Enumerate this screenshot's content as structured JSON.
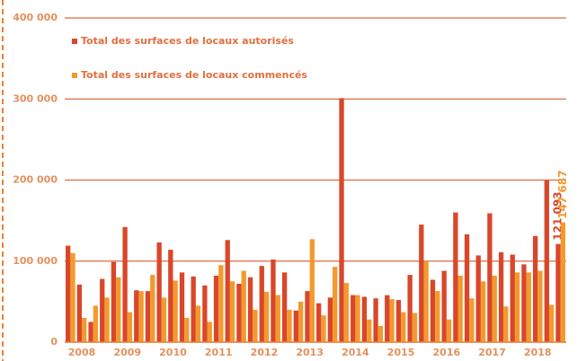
{
  "chart_data": {
    "type": "bar",
    "categories": [
      null,
      "2008",
      null,
      null,
      null,
      "2009",
      null,
      null,
      null,
      "2010",
      null,
      null,
      null,
      "2011",
      null,
      null,
      null,
      "2012",
      null,
      null,
      null,
      "2013",
      null,
      null,
      null,
      "2014",
      null,
      null,
      null,
      "2015",
      null,
      null,
      null,
      "2016",
      null,
      null,
      null,
      "2017",
      null,
      null,
      null,
      "2018",
      null,
      null
    ],
    "series": [
      {
        "name": "Total des surfaces de locaux autorisés",
        "color": "#d9472b",
        "values": [
          119000,
          71000,
          25000,
          78000,
          99000,
          142000,
          64000,
          63000,
          123000,
          114000,
          86000,
          81000,
          70000,
          82000,
          126000,
          72000,
          80000,
          94000,
          102000,
          86000,
          39000,
          63000,
          48000,
          55000,
          301000,
          58000,
          56000,
          54000,
          58000,
          52000,
          83000,
          145000,
          77000,
          88000,
          160000,
          133000,
          107000,
          159000,
          111000,
          108000,
          96000,
          131000,
          200000,
          121093
        ],
        "value_labels": [
          null,
          null,
          null,
          null,
          null,
          null,
          null,
          null,
          null,
          null,
          null,
          null,
          null,
          null,
          null,
          null,
          null,
          null,
          null,
          null,
          null,
          null,
          null,
          null,
          null,
          null,
          null,
          null,
          null,
          null,
          null,
          null,
          null,
          null,
          null,
          null,
          null,
          null,
          null,
          null,
          null,
          null,
          null,
          "121 093"
        ]
      },
      {
        "name": "Total des surfaces de locaux commencés",
        "color": "#f39a2e",
        "values": [
          110000,
          30000,
          45000,
          55000,
          80000,
          37000,
          63000,
          83000,
          55000,
          76000,
          30000,
          45000,
          25000,
          95000,
          75000,
          88000,
          40000,
          62000,
          58000,
          40000,
          50000,
          127000,
          33000,
          93000,
          73000,
          58000,
          28000,
          20000,
          53000,
          37000,
          36000,
          100000,
          63000,
          28000,
          82000,
          54000,
          75000,
          82000,
          44000,
          86000,
          86000,
          88000,
          46000,
          147687
        ],
        "value_labels": [
          null,
          null,
          null,
          null,
          null,
          null,
          null,
          null,
          null,
          null,
          null,
          null,
          null,
          null,
          null,
          null,
          null,
          null,
          null,
          null,
          null,
          null,
          null,
          null,
          null,
          null,
          null,
          null,
          null,
          null,
          null,
          null,
          null,
          null,
          null,
          null,
          null,
          null,
          null,
          null,
          null,
          null,
          null,
          "147 687"
        ]
      }
    ],
    "ylim": [
      0,
      400000
    ],
    "yticks": [
      0,
      {
        "value": 100000,
        "label": "100 000"
      },
      {
        "value": 200000,
        "label": "200 000"
      },
      {
        "value": 300000,
        "label": "300 000"
      },
      {
        "value": 400000,
        "label": "400 000"
      }
    ],
    "grid": true
  }
}
